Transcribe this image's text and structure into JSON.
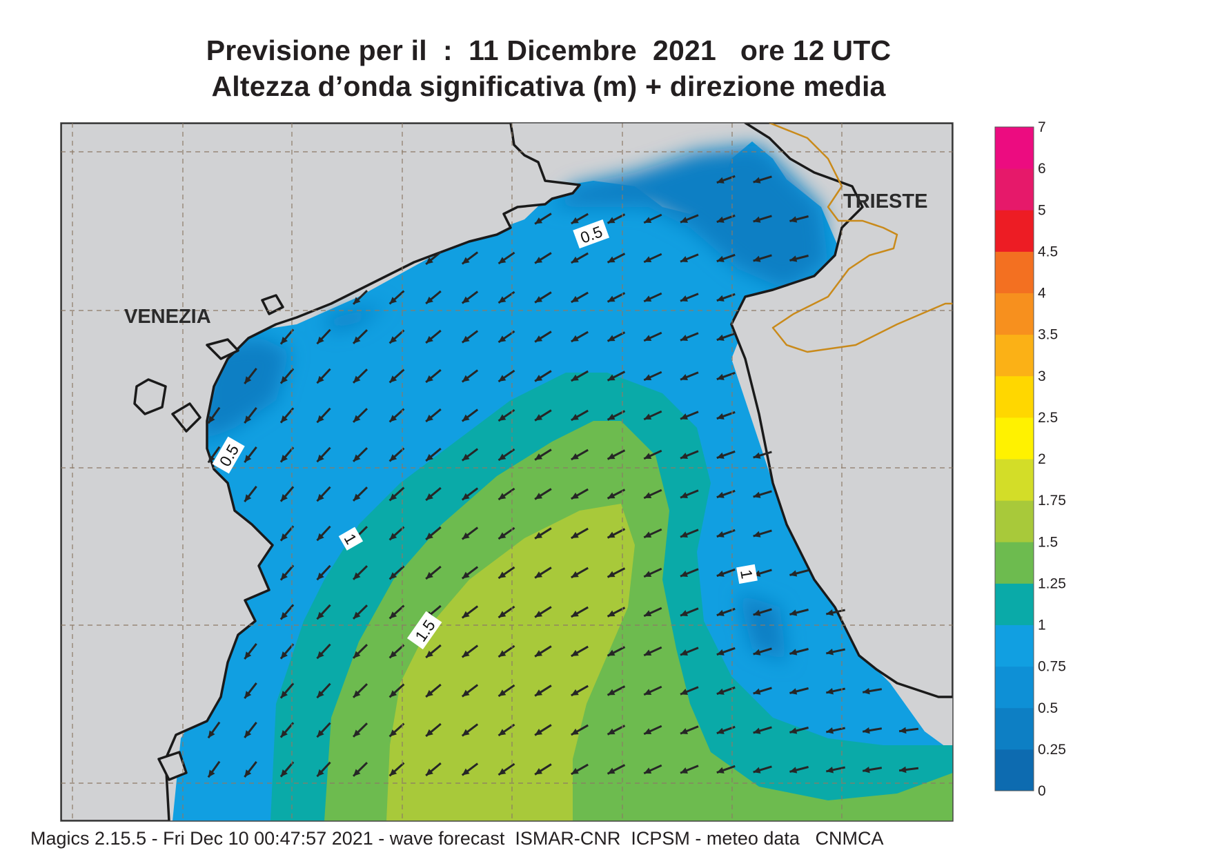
{
  "title": {
    "line1": "Previsione per il  :  11 Dicembre  2021   ore 12 UTC",
    "line2": "Altezza d’onda significativa (m) + direzione media"
  },
  "footer": {
    "text": "Magics 2.15.5 - Fri Dec 10 00:47:57 2021 - wave forecast  ISMAR-CNR  ICPSM - meteo data   CNMCA"
  },
  "map": {
    "cities": [
      {
        "name": "VENEZIA"
      },
      {
        "name": "TRIESTE"
      }
    ],
    "contour_labels": [
      "0.5",
      "0.5",
      "1",
      "1",
      "1.5"
    ],
    "colors": {
      "land": "#d1d2d4",
      "border": "#c98a1a",
      "coast": "#1a1a1a",
      "arrow": "#262626"
    },
    "arrow_icon": "wave-direction-arrow-icon"
  },
  "colorbar": {
    "labels": [
      "0",
      "0.25",
      "0.5",
      "0.75",
      "1",
      "1.25",
      "1.5",
      "1.75",
      "2",
      "2.5",
      "3",
      "3.5",
      "4",
      "4.5",
      "5",
      "6",
      "7"
    ],
    "colors": [
      "#0d6bb0",
      "#0d7fc4",
      "#0e90d6",
      "#119fe1",
      "#0aaaa8",
      "#6dbb4f",
      "#a8c93a",
      "#d3dd28",
      "#fff200",
      "#ffd700",
      "#fbb116",
      "#f7901e",
      "#f37021",
      "#ed1c24",
      "#e6196a",
      "#ec0c80"
    ]
  }
}
